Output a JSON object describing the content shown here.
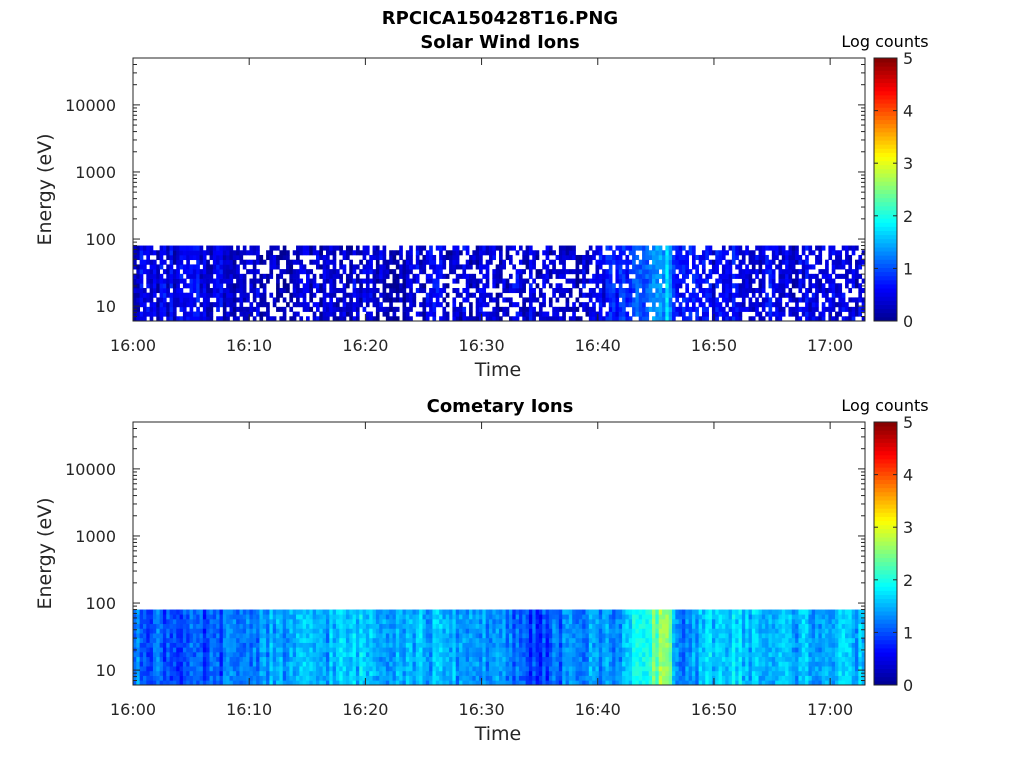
{
  "figure": {
    "title": "RPCICA150428T16.PNG"
  },
  "colorscale": {
    "stops": [
      "#00008f",
      "#0000ff",
      "#0080ff",
      "#00ffff",
      "#80ff80",
      "#ffff00",
      "#ff8000",
      "#ff0000",
      "#800000"
    ]
  },
  "chart_data": [
    {
      "type": "heatmap",
      "title": "Solar Wind Ions",
      "xlabel": "Time",
      "ylabel": "Energy (eV)",
      "y_scale": "log",
      "ylim": [
        6,
        50000
      ],
      "xlim": [
        "16:00",
        "17:03"
      ],
      "x_ticks": [
        "16:00",
        "16:10",
        "16:20",
        "16:30",
        "16:40",
        "16:50",
        "17:00"
      ],
      "y_ticks": [
        "10",
        "100",
        "1000",
        "10000"
      ],
      "data_energy_range": [
        6,
        80
      ],
      "colorbar": {
        "label": "Log counts",
        "range": [
          0,
          5
        ],
        "ticks": [
          "0",
          "1",
          "2",
          "3",
          "4",
          "5"
        ]
      },
      "profile_times": [
        "16:00",
        "16:09",
        "16:10",
        "16:20",
        "16:30",
        "16:38",
        "16:40",
        "16:44",
        "16:46",
        "16:47",
        "16:50",
        "17:00",
        "17:03"
      ],
      "profile_log_counts": [
        0.45,
        0.45,
        0.3,
        0.35,
        0.4,
        0.3,
        0.5,
        1.0,
        1.5,
        0.7,
        0.5,
        0.45,
        0.45
      ],
      "profile_gap_fraction": [
        0.15,
        0.15,
        0.4,
        0.3,
        0.3,
        0.45,
        0.3,
        0.15,
        0.05,
        0.2,
        0.3,
        0.3,
        0.3
      ]
    },
    {
      "type": "heatmap",
      "title": "Cometary Ions",
      "xlabel": "Time",
      "ylabel": "Energy (eV)",
      "y_scale": "log",
      "ylim": [
        6,
        50000
      ],
      "xlim": [
        "16:00",
        "17:03"
      ],
      "x_ticks": [
        "16:00",
        "16:10",
        "16:20",
        "16:30",
        "16:40",
        "16:50",
        "17:00"
      ],
      "y_ticks": [
        "10",
        "100",
        "1000",
        "10000"
      ],
      "data_energy_range": [
        6,
        80
      ],
      "colorbar": {
        "label": "Log counts",
        "range": [
          0,
          5
        ],
        "ticks": [
          "0",
          "1",
          "2",
          "3",
          "4",
          "5"
        ]
      },
      "profile_times": [
        "16:00",
        "16:06",
        "16:10",
        "16:20",
        "16:30",
        "16:35",
        "16:38",
        "16:42",
        "16:45",
        "16:46",
        "16:47",
        "16:50",
        "16:55",
        "17:00",
        "17:03"
      ],
      "profile_log_counts": [
        1.2,
        0.9,
        1.3,
        1.6,
        1.4,
        0.9,
        1.3,
        1.4,
        2.4,
        2.7,
        1.0,
        1.7,
        1.5,
        1.5,
        1.5
      ],
      "profile_gap_fraction": [
        0,
        0,
        0,
        0,
        0,
        0,
        0,
        0,
        0,
        0,
        0,
        0,
        0,
        0,
        0
      ]
    }
  ]
}
